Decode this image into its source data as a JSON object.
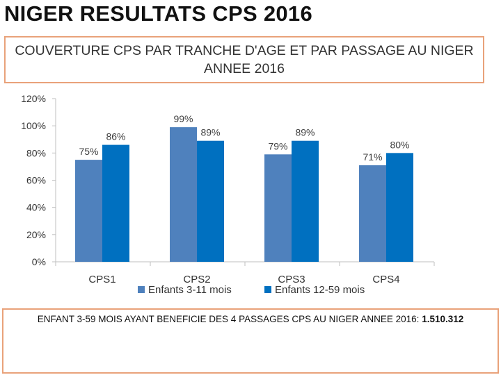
{
  "page": {
    "title": "NIGER RESULTATS CPS 2016"
  },
  "chart_data": {
    "type": "bar",
    "title": "COUVERTURE CPS PAR TRANCHE D'AGE ET PAR PASSAGE AU NIGER ANNEE 2016",
    "categories": [
      "CPS1",
      "CPS2",
      "CPS3",
      "CPS4"
    ],
    "series": [
      {
        "name": "Enfants 3-11 mois",
        "values": [
          75,
          99,
          79,
          71
        ],
        "labels": [
          "75%",
          "99%",
          "79%",
          "71%"
        ],
        "color": "#4f81bd"
      },
      {
        "name": "Enfants 12-59 mois",
        "values": [
          86,
          89,
          89,
          80
        ],
        "labels": [
          "86%",
          "89%",
          "89%",
          "80%"
        ],
        "color": "#0070c0"
      }
    ],
    "ylim": [
      0,
      120
    ],
    "yticks": [
      "0%",
      "20%",
      "40%",
      "60%",
      "80%",
      "100%",
      "120%"
    ],
    "ytick_values": [
      0,
      20,
      40,
      60,
      80,
      100,
      120
    ],
    "legend_position": "bottom",
    "grid": false,
    "xlabel": "",
    "ylabel": ""
  },
  "note": {
    "text": "ENFANT 3-59 MOIS AYANT BENEFICIE DES 4 PASSAGES CPS AU NIGER ANNEE 2016:",
    "value": "1.510.312"
  }
}
